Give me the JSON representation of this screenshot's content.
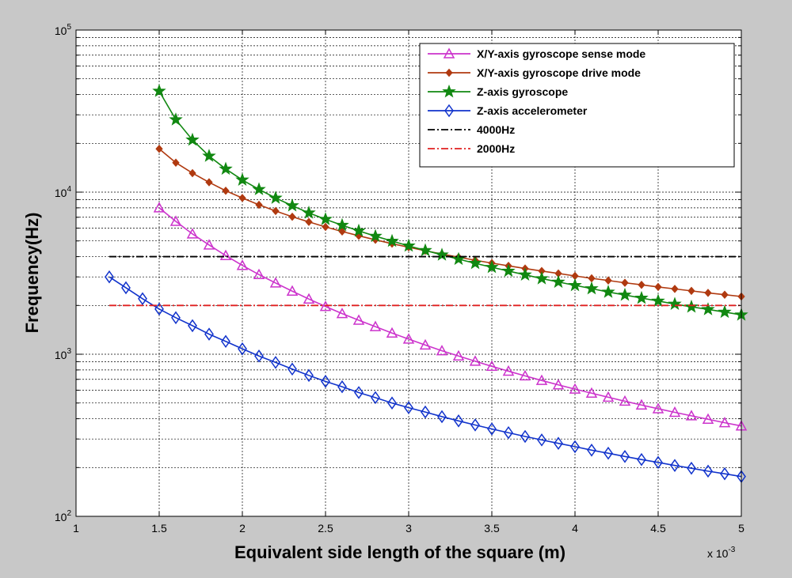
{
  "chart_data": {
    "type": "line",
    "xlabel": "Equivalent side length of the square (m)",
    "ylabel": "Frequency(Hz)",
    "x_multiplier_label": "x 10",
    "x_multiplier_exp": "-3",
    "xlim": [
      1,
      5
    ],
    "ylim": [
      100,
      100000
    ],
    "yscale": "log",
    "grid": true,
    "legend_position": "top-right",
    "x_tick_labels": [
      "1",
      "1.5",
      "2",
      "2.5",
      "3",
      "3.5",
      "4",
      "4.5",
      "5"
    ],
    "y_tick_labels": [
      {
        "value": 100,
        "base": "10",
        "exp": "2"
      },
      {
        "value": 1000,
        "base": "10",
        "exp": "3"
      },
      {
        "value": 10000,
        "base": "10",
        "exp": "4"
      },
      {
        "value": 100000,
        "base": "10",
        "exp": "5"
      }
    ],
    "series": [
      {
        "name": "X/Y-axis gyroscope sense mode",
        "color": "#cc33cc",
        "marker": "triangle",
        "x": [
          1.5,
          1.6,
          1.7,
          1.8,
          1.9,
          2.0,
          2.1,
          2.2,
          2.3,
          2.4,
          2.5,
          2.6,
          2.7,
          2.8,
          2.9,
          3.0,
          3.1,
          3.2,
          3.3,
          3.4,
          3.5,
          3.6,
          3.7,
          3.8,
          3.9,
          4.0,
          4.1,
          4.2,
          4.3,
          4.4,
          4.5,
          4.6,
          4.7,
          4.8,
          4.9,
          5.0
        ],
        "values": [
          8000,
          6600,
          5520,
          4720,
          4060,
          3530,
          3100,
          2750,
          2450,
          2190,
          1970,
          1780,
          1620,
          1480,
          1350,
          1240,
          1140,
          1050,
          975,
          905,
          842,
          786,
          735,
          689,
          647,
          609,
          575,
          543,
          513,
          486,
          461,
          438,
          417,
          397,
          378,
          361
        ]
      },
      {
        "name": "X/Y-axis gyroscope drive mode",
        "color": "#b03a10",
        "marker": "dot",
        "x": [
          1.5,
          1.6,
          1.7,
          1.8,
          1.9,
          2.0,
          2.1,
          2.2,
          2.3,
          2.4,
          2.5,
          2.6,
          2.7,
          2.8,
          2.9,
          3.0,
          3.1,
          3.2,
          3.3,
          3.4,
          3.5,
          3.6,
          3.7,
          3.8,
          3.9,
          4.0,
          4.1,
          4.2,
          4.3,
          4.4,
          4.5,
          4.6,
          4.7,
          4.8,
          4.9,
          5.0
        ],
        "values": [
          18500,
          15200,
          13100,
          11500,
          10200,
          9200,
          8350,
          7650,
          7050,
          6550,
          6100,
          5720,
          5380,
          5080,
          4810,
          4570,
          4350,
          4150,
          3970,
          3800,
          3650,
          3510,
          3380,
          3260,
          3150,
          3040,
          2940,
          2850,
          2760,
          2680,
          2600,
          2530,
          2460,
          2390,
          2330,
          2270
        ]
      },
      {
        "name": "Z-axis gyroscope",
        "color": "#118811",
        "marker": "star",
        "x": [
          1.5,
          1.6,
          1.7,
          1.8,
          1.9,
          2.0,
          2.1,
          2.2,
          2.3,
          2.4,
          2.5,
          2.6,
          2.7,
          2.8,
          2.9,
          3.0,
          3.1,
          3.2,
          3.3,
          3.4,
          3.5,
          3.6,
          3.7,
          3.8,
          3.9,
          4.0,
          4.1,
          4.2,
          4.3,
          4.4,
          4.5,
          4.6,
          4.7,
          4.8,
          4.9,
          5.0
        ],
        "values": [
          42000,
          28000,
          21000,
          16700,
          13900,
          11900,
          10400,
          9200,
          8250,
          7450,
          6800,
          6250,
          5770,
          5350,
          4990,
          4660,
          4370,
          4100,
          3860,
          3640,
          3440,
          3260,
          3090,
          2930,
          2790,
          2660,
          2540,
          2420,
          2320,
          2220,
          2130,
          2040,
          1960,
          1890,
          1820,
          1750
        ]
      },
      {
        "name": "Z-axis accelerometer",
        "color": "#1133cc",
        "marker": "diamond",
        "x": [
          1.2,
          1.3,
          1.4,
          1.5,
          1.6,
          1.7,
          1.8,
          1.9,
          2.0,
          2.1,
          2.2,
          2.3,
          2.4,
          2.5,
          2.6,
          2.7,
          2.8,
          2.9,
          3.0,
          3.1,
          3.2,
          3.3,
          3.4,
          3.5,
          3.6,
          3.7,
          3.8,
          3.9,
          4.0,
          4.1,
          4.2,
          4.3,
          4.4,
          4.5,
          4.6,
          4.7,
          4.8,
          4.9,
          5.0
        ],
        "values": [
          3000,
          2570,
          2200,
          1900,
          1680,
          1500,
          1330,
          1200,
          1080,
          975,
          890,
          810,
          740,
          680,
          630,
          580,
          540,
          500,
          468,
          440,
          412,
          388,
          366,
          346,
          328,
          311,
          296,
          282,
          269,
          256,
          245,
          234,
          224,
          215,
          206,
          198,
          190,
          183,
          176
        ]
      },
      {
        "name": "4000Hz",
        "color": "#000000",
        "marker": "none",
        "linestyle": "dashdot",
        "x": [
          1.2,
          5.0
        ],
        "values": [
          4000,
          4000
        ]
      },
      {
        "name": "2000Hz",
        "color": "#e02020",
        "marker": "none",
        "linestyle": "dashdot",
        "x": [
          1.2,
          5.0
        ],
        "values": [
          2000,
          2000
        ]
      }
    ]
  }
}
